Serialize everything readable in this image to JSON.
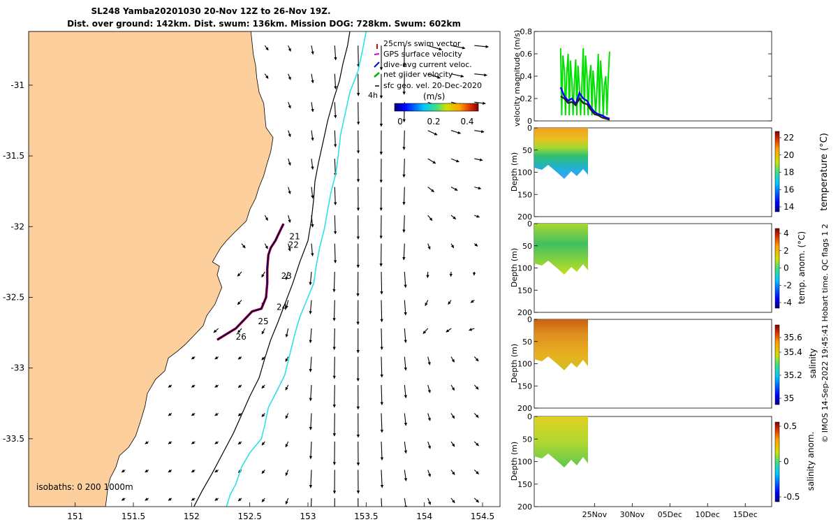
{
  "title": {
    "line1": "SL248 Yamba20201030 20-Nov 12Z to 26-Nov 19Z.",
    "line2": "Dist. over ground: 142km. Dist. swum: 136km. Mission DOG: 728km. Swum: 602km"
  },
  "side_stamp": "© IMOS 14-Sep-2022 19:45:41 Hobart time. QC flags 1  2",
  "chart_data": [
    {
      "type": "map",
      "name": "glider-track-map",
      "xlim": [
        150.6,
        154.65
      ],
      "ylim": [
        -33.98,
        -30.62
      ],
      "xticks": [
        151,
        151.5,
        152,
        152.5,
        153,
        153.5,
        154,
        154.5
      ],
      "xtick_labels": [
        "151",
        "151.5",
        "152",
        "152.5",
        "153",
        "153.5",
        "154",
        "154.5"
      ],
      "yticks": [
        -31,
        -31.5,
        -32,
        -32.5,
        -33,
        -33.5
      ],
      "ytick_labels": [
        "-31",
        "-31.5",
        "-32",
        "-32.5",
        "-33",
        "-33.5"
      ],
      "land_color": "#fccf9d",
      "coast": [
        [
          152.51,
          -30.62
        ],
        [
          152.52,
          -30.7
        ],
        [
          152.53,
          -30.78
        ],
        [
          152.55,
          -30.86
        ],
        [
          152.56,
          -30.95
        ],
        [
          152.58,
          -31.05
        ],
        [
          152.62,
          -31.13
        ],
        [
          152.63,
          -31.22
        ],
        [
          152.64,
          -31.3
        ],
        [
          152.7,
          -31.37
        ],
        [
          152.68,
          -31.47
        ],
        [
          152.65,
          -31.55
        ],
        [
          152.62,
          -31.64
        ],
        [
          152.58,
          -31.72
        ],
        [
          152.55,
          -31.8
        ],
        [
          152.5,
          -31.88
        ],
        [
          152.47,
          -31.96
        ],
        [
          152.37,
          -32.04
        ],
        [
          152.3,
          -32.1
        ],
        [
          152.25,
          -32.15
        ],
        [
          152.2,
          -32.22
        ],
        [
          152.18,
          -32.25
        ],
        [
          152.24,
          -32.28
        ],
        [
          152.22,
          -32.34
        ],
        [
          152.26,
          -32.43
        ],
        [
          152.2,
          -32.55
        ],
        [
          152.13,
          -32.63
        ],
        [
          152.1,
          -32.7
        ],
        [
          152.02,
          -32.77
        ],
        [
          151.95,
          -32.83
        ],
        [
          151.88,
          -32.88
        ],
        [
          151.8,
          -32.93
        ],
        [
          151.77,
          -33.02
        ],
        [
          151.69,
          -33.08
        ],
        [
          151.62,
          -33.18
        ],
        [
          151.6,
          -33.27
        ],
        [
          151.56,
          -33.38
        ],
        [
          151.52,
          -33.48
        ],
        [
          151.46,
          -33.56
        ],
        [
          151.38,
          -33.62
        ],
        [
          151.35,
          -33.7
        ],
        [
          151.3,
          -33.78
        ],
        [
          151.28,
          -33.85
        ],
        [
          151.27,
          -33.92
        ],
        [
          151.26,
          -33.98
        ]
      ],
      "isobath_200m": [
        [
          153.36,
          -30.62
        ],
        [
          153.34,
          -30.72
        ],
        [
          153.3,
          -30.85
        ],
        [
          153.27,
          -30.97
        ],
        [
          153.22,
          -31.1
        ],
        [
          153.17,
          -31.25
        ],
        [
          153.13,
          -31.4
        ],
        [
          153.09,
          -31.55
        ],
        [
          153.06,
          -31.68
        ],
        [
          153.05,
          -31.8
        ],
        [
          153.03,
          -31.95
        ],
        [
          153.0,
          -32.1
        ],
        [
          152.93,
          -32.25
        ],
        [
          152.87,
          -32.4
        ],
        [
          152.8,
          -32.55
        ],
        [
          152.74,
          -32.68
        ],
        [
          152.68,
          -32.8
        ],
        [
          152.63,
          -32.93
        ],
        [
          152.58,
          -33.07
        ],
        [
          152.5,
          -33.2
        ],
        [
          152.43,
          -33.33
        ],
        [
          152.36,
          -33.46
        ],
        [
          152.27,
          -33.6
        ],
        [
          152.18,
          -33.74
        ],
        [
          152.09,
          -33.87
        ],
        [
          152.02,
          -33.98
        ]
      ],
      "isobath_1000m": [
        [
          153.5,
          -30.62
        ],
        [
          153.47,
          -30.75
        ],
        [
          153.43,
          -30.9
        ],
        [
          153.36,
          -31.05
        ],
        [
          153.32,
          -31.2
        ],
        [
          153.28,
          -31.35
        ],
        [
          153.26,
          -31.5
        ],
        [
          153.24,
          -31.62
        ],
        [
          153.2,
          -31.75
        ],
        [
          153.17,
          -31.88
        ],
        [
          153.14,
          -32.02
        ],
        [
          153.1,
          -32.15
        ],
        [
          153.07,
          -32.28
        ],
        [
          153.05,
          -32.4
        ],
        [
          152.99,
          -32.52
        ],
        [
          152.93,
          -32.64
        ],
        [
          152.89,
          -32.75
        ],
        [
          152.86,
          -32.85
        ],
        [
          152.83,
          -32.95
        ],
        [
          152.8,
          -33.05
        ],
        [
          152.74,
          -33.15
        ],
        [
          152.66,
          -33.28
        ],
        [
          152.63,
          -33.4
        ],
        [
          152.6,
          -33.5
        ],
        [
          152.5,
          -33.6
        ],
        [
          152.43,
          -33.7
        ],
        [
          152.38,
          -33.82
        ],
        [
          152.33,
          -33.9
        ],
        [
          152.3,
          -33.98
        ]
      ],
      "track": [
        [
          152.79,
          -31.98
        ],
        [
          152.76,
          -32.03
        ],
        [
          152.72,
          -32.1
        ],
        [
          152.68,
          -32.15
        ],
        [
          152.66,
          -32.2
        ],
        [
          152.65,
          -32.3
        ],
        [
          152.65,
          -32.4
        ],
        [
          152.64,
          -32.5
        ],
        [
          152.6,
          -32.58
        ],
        [
          152.52,
          -32.6
        ],
        [
          152.45,
          -32.66
        ],
        [
          152.38,
          -32.72
        ],
        [
          152.3,
          -32.76
        ],
        [
          152.24,
          -32.79
        ],
        [
          152.22,
          -32.8
        ]
      ],
      "day_labels": [
        {
          "text": "21",
          "lon": 152.84,
          "lat": -32.09
        },
        {
          "text": "22",
          "lon": 152.83,
          "lat": -32.15
        },
        {
          "text": "23",
          "lon": 152.77,
          "lat": -32.37
        },
        {
          "text": "24",
          "lon": 152.73,
          "lat": -32.59
        },
        {
          "text": "25",
          "lon": 152.57,
          "lat": -32.69
        },
        {
          "text": "26",
          "lon": 152.38,
          "lat": -32.8
        }
      ],
      "legend": [
        "25cm/s swim vector",
        "GPS surface velocity",
        "dive-avg current veloc.",
        "net glider velocity",
        "sfc geo. vel. 20-Dec-2020"
      ],
      "legend_colors": [
        "#e00000",
        "#d000d0",
        "#0000e0",
        "#00b000",
        "#000000"
      ],
      "hour_label": "4h",
      "colorbar": {
        "label": "(m/s)",
        "ticks": [
          0,
          0.2,
          0.4
        ],
        "tick_labels": [
          "0",
          "0.2",
          "0.4"
        ],
        "range": [
          0,
          0.5
        ]
      },
      "isobath_label": "isobaths: 0  200  1000m"
    },
    {
      "type": "line",
      "name": "velocity-magnitude",
      "ylabel": "velocity magnitude (m/s)",
      "ylim": [
        0,
        0.8
      ],
      "yticks": [
        0,
        0.2,
        0.4,
        0.6,
        0.8
      ],
      "ytick_labels": [
        "0",
        "0.2",
        "0.4",
        "0.6",
        "0.8"
      ],
      "x_days": [
        20.5,
        21,
        21.5,
        22,
        22.5,
        23,
        23.5,
        24,
        24.5,
        25,
        25.5,
        26,
        26.5,
        27
      ],
      "series": [
        {
          "name": "gps",
          "color": "#00e000",
          "values": [
            0.65,
            0.45,
            0.6,
            0.35,
            0.55,
            0.3,
            0.65,
            0.4,
            0.5,
            0.28,
            0.6,
            0.35,
            0.4,
            0.62
          ]
        },
        {
          "name": "dive-avg",
          "color": "#0000ff",
          "values": [
            0.3,
            0.22,
            0.18,
            0.2,
            0.15,
            0.25,
            0.2,
            0.18,
            0.12,
            0.08,
            0.06,
            0.05,
            0.03,
            0.02
          ]
        },
        {
          "name": "net",
          "color": "#222222",
          "values": [
            0.22,
            0.2,
            0.16,
            0.17,
            0.14,
            0.2,
            0.16,
            0.15,
            0.1,
            0.06,
            0.05,
            0.03,
            0.02,
            0.01
          ]
        }
      ]
    },
    {
      "type": "heatmap",
      "name": "temperature",
      "ylabel": "Depth (m)",
      "ylim": [
        0,
        200
      ],
      "yticks": [
        0,
        50,
        100,
        150,
        200
      ],
      "cbar_label": "temperature (°C)",
      "cbar_ticks": [
        "22",
        "20",
        "18",
        "16",
        "14"
      ]
    },
    {
      "type": "heatmap",
      "name": "temp-anomaly",
      "ylabel": "Depth (m)",
      "ylim": [
        0,
        200
      ],
      "yticks": [
        0,
        50,
        100,
        150,
        200
      ],
      "cbar_label": "temp. anom. (°C)",
      "cbar_ticks": [
        "4",
        "2",
        "0",
        "-2",
        "-4"
      ]
    },
    {
      "type": "heatmap",
      "name": "salinity",
      "ylabel": "Depth (m)",
      "ylim": [
        0,
        200
      ],
      "yticks": [
        0,
        50,
        100,
        150,
        200
      ],
      "cbar_label": "salinity",
      "cbar_ticks": [
        "35.6",
        "35.4",
        "35.2",
        "35"
      ]
    },
    {
      "type": "heatmap",
      "name": "salinity-anomaly",
      "ylabel": "Depth (m)",
      "ylim": [
        0,
        200
      ],
      "yticks": [
        0,
        50,
        100,
        150,
        200
      ],
      "cbar_label": "salinity anom.",
      "cbar_ticks": [
        "0.5",
        "0",
        "-0.5"
      ],
      "xticks_days": [
        25,
        30,
        35,
        40,
        45
      ],
      "xtick_labels": [
        "25Nov",
        "30Nov",
        "05Dec",
        "10Dec",
        "15Dec"
      ]
    }
  ]
}
